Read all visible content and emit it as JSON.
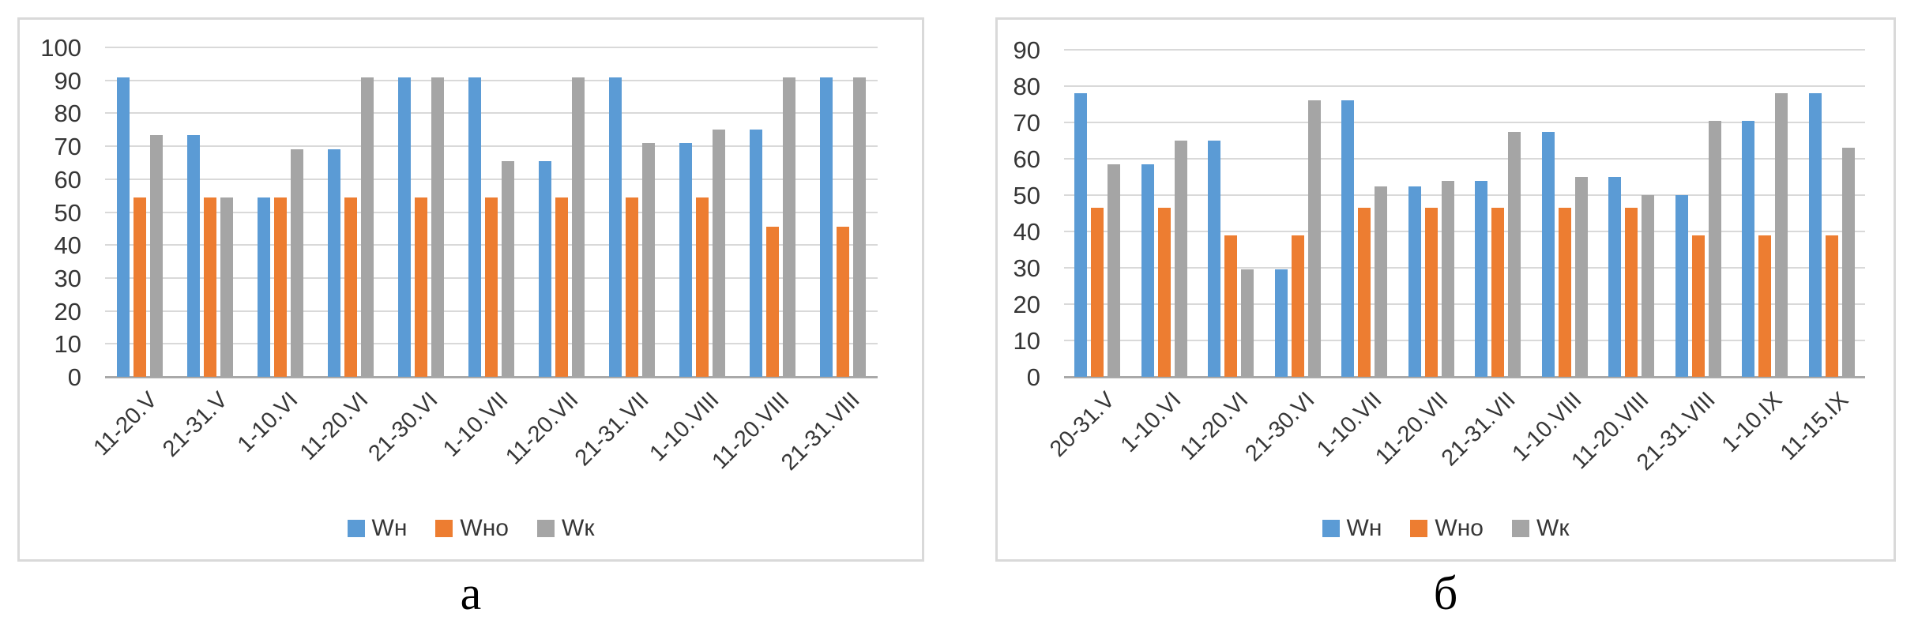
{
  "page": {
    "background": "#ffffff"
  },
  "colors": {
    "series_wn_blue": "#5b9bd5",
    "series_wno_orange": "#ed7d31",
    "series_wk_gray": "#a5a5a5",
    "gridline": "#d9d9d9",
    "axis_line": "#a9a9a9",
    "chart_border": "#d9d9d9",
    "axis_text": "#363636"
  },
  "figure_captions": {
    "a": "а",
    "b": "б"
  },
  "chart_data": [
    {
      "id": "chart-a",
      "type": "bar",
      "title": "",
      "xlabel": "",
      "ylabel": "",
      "ylim": [
        0,
        100
      ],
      "ystep": 10,
      "grid": true,
      "legend_position": "bottom",
      "categories": [
        "11-20.V",
        "21-31.V",
        "1-10.VI",
        "11-20.VI",
        "21-30.VI",
        "1-10.VII",
        "11-20.VII",
        "21-31.VII",
        "1-10.VIII",
        "11-20.VIII",
        "21-31.VIII"
      ],
      "series": [
        {
          "name": "Wн",
          "color": "#5b9bd5",
          "values": [
            91,
            73.5,
            54.5,
            69,
            91,
            91,
            65.5,
            91,
            71,
            75,
            91
          ]
        },
        {
          "name": "Wно",
          "color": "#ed7d31",
          "values": [
            54.5,
            54.5,
            54.5,
            54.5,
            54.5,
            54.5,
            54.5,
            54.5,
            54.5,
            45.5,
            45.5
          ]
        },
        {
          "name": "Wк",
          "color": "#a5a5a5",
          "values": [
            73.5,
            54.5,
            69,
            91,
            91,
            65.5,
            91,
            71,
            75,
            91,
            91
          ]
        }
      ]
    },
    {
      "id": "chart-b",
      "type": "bar",
      "title": "",
      "xlabel": "",
      "ylabel": "",
      "ylim": [
        0,
        90
      ],
      "ystep": 10,
      "grid": true,
      "legend_position": "bottom",
      "categories": [
        "20-31.V",
        "1-10.VI",
        "11-20.VI",
        "21-30.VI",
        "1-10.VII",
        "11-20.VII",
        "21-31.VII",
        "1-10.VIII",
        "11-20.VIII",
        "21-31.VIII",
        "1-10.IX",
        "11-15.IX"
      ],
      "series": [
        {
          "name": "Wн",
          "color": "#5b9bd5",
          "values": [
            78,
            58.5,
            65,
            29.5,
            76,
            52.5,
            54,
            67.5,
            55,
            50,
            70.5,
            78
          ]
        },
        {
          "name": "Wно",
          "color": "#ed7d31",
          "values": [
            46.5,
            46.5,
            39,
            39,
            46.5,
            46.5,
            46.5,
            46.5,
            46.5,
            39,
            39,
            39
          ]
        },
        {
          "name": "Wк",
          "color": "#a5a5a5",
          "values": [
            58.5,
            65,
            29.5,
            76,
            52.5,
            54,
            67.5,
            55,
            50,
            70.5,
            78,
            63
          ]
        }
      ]
    }
  ]
}
